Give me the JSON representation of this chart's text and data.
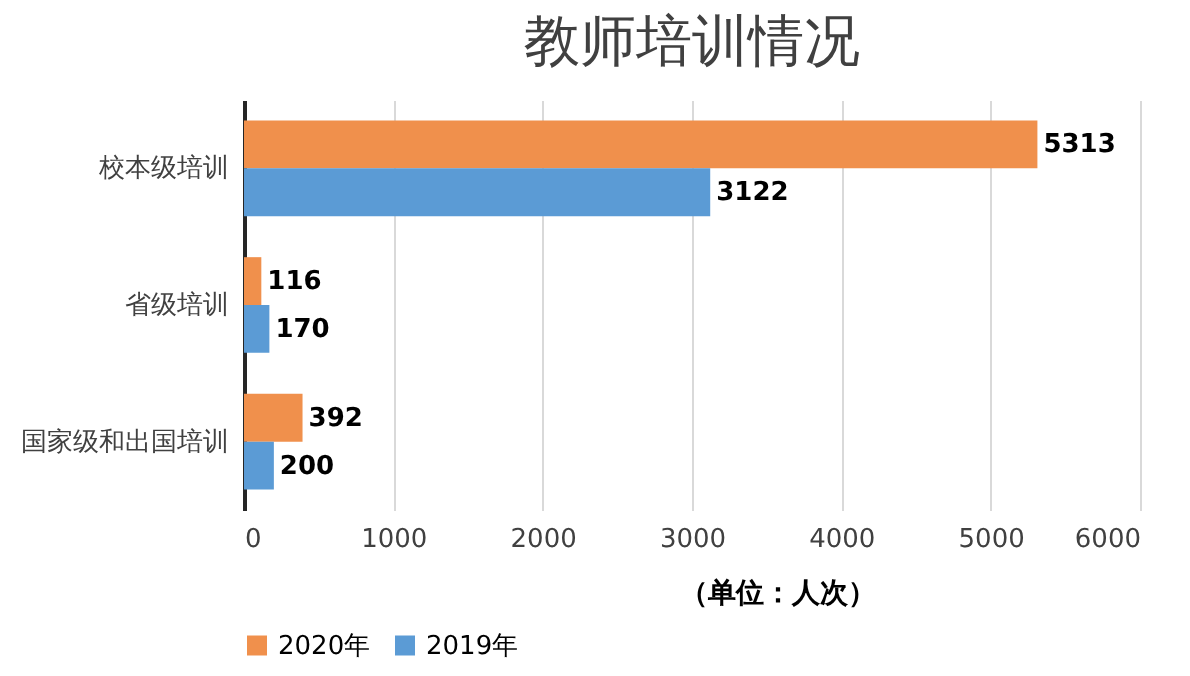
{
  "chart_data": {
    "type": "bar",
    "orientation": "horizontal",
    "title": "教师培训情况",
    "categories": [
      "校本级培训",
      "省级培训",
      "国家级和出国培训"
    ],
    "series": [
      {
        "name": "2020年",
        "color": "#f0904c",
        "values": [
          5313,
          116,
          392
        ]
      },
      {
        "name": "2019年",
        "color": "#5b9bd5",
        "values": [
          3122,
          170,
          200
        ]
      }
    ],
    "xlim": [
      0,
      6000
    ],
    "xticks": [
      0,
      1000,
      2000,
      3000,
      4000,
      5000,
      6000
    ],
    "grid": "x",
    "legend": "bottom left",
    "data_labels": true,
    "annotations": [
      "（单位：人次）"
    ]
  }
}
